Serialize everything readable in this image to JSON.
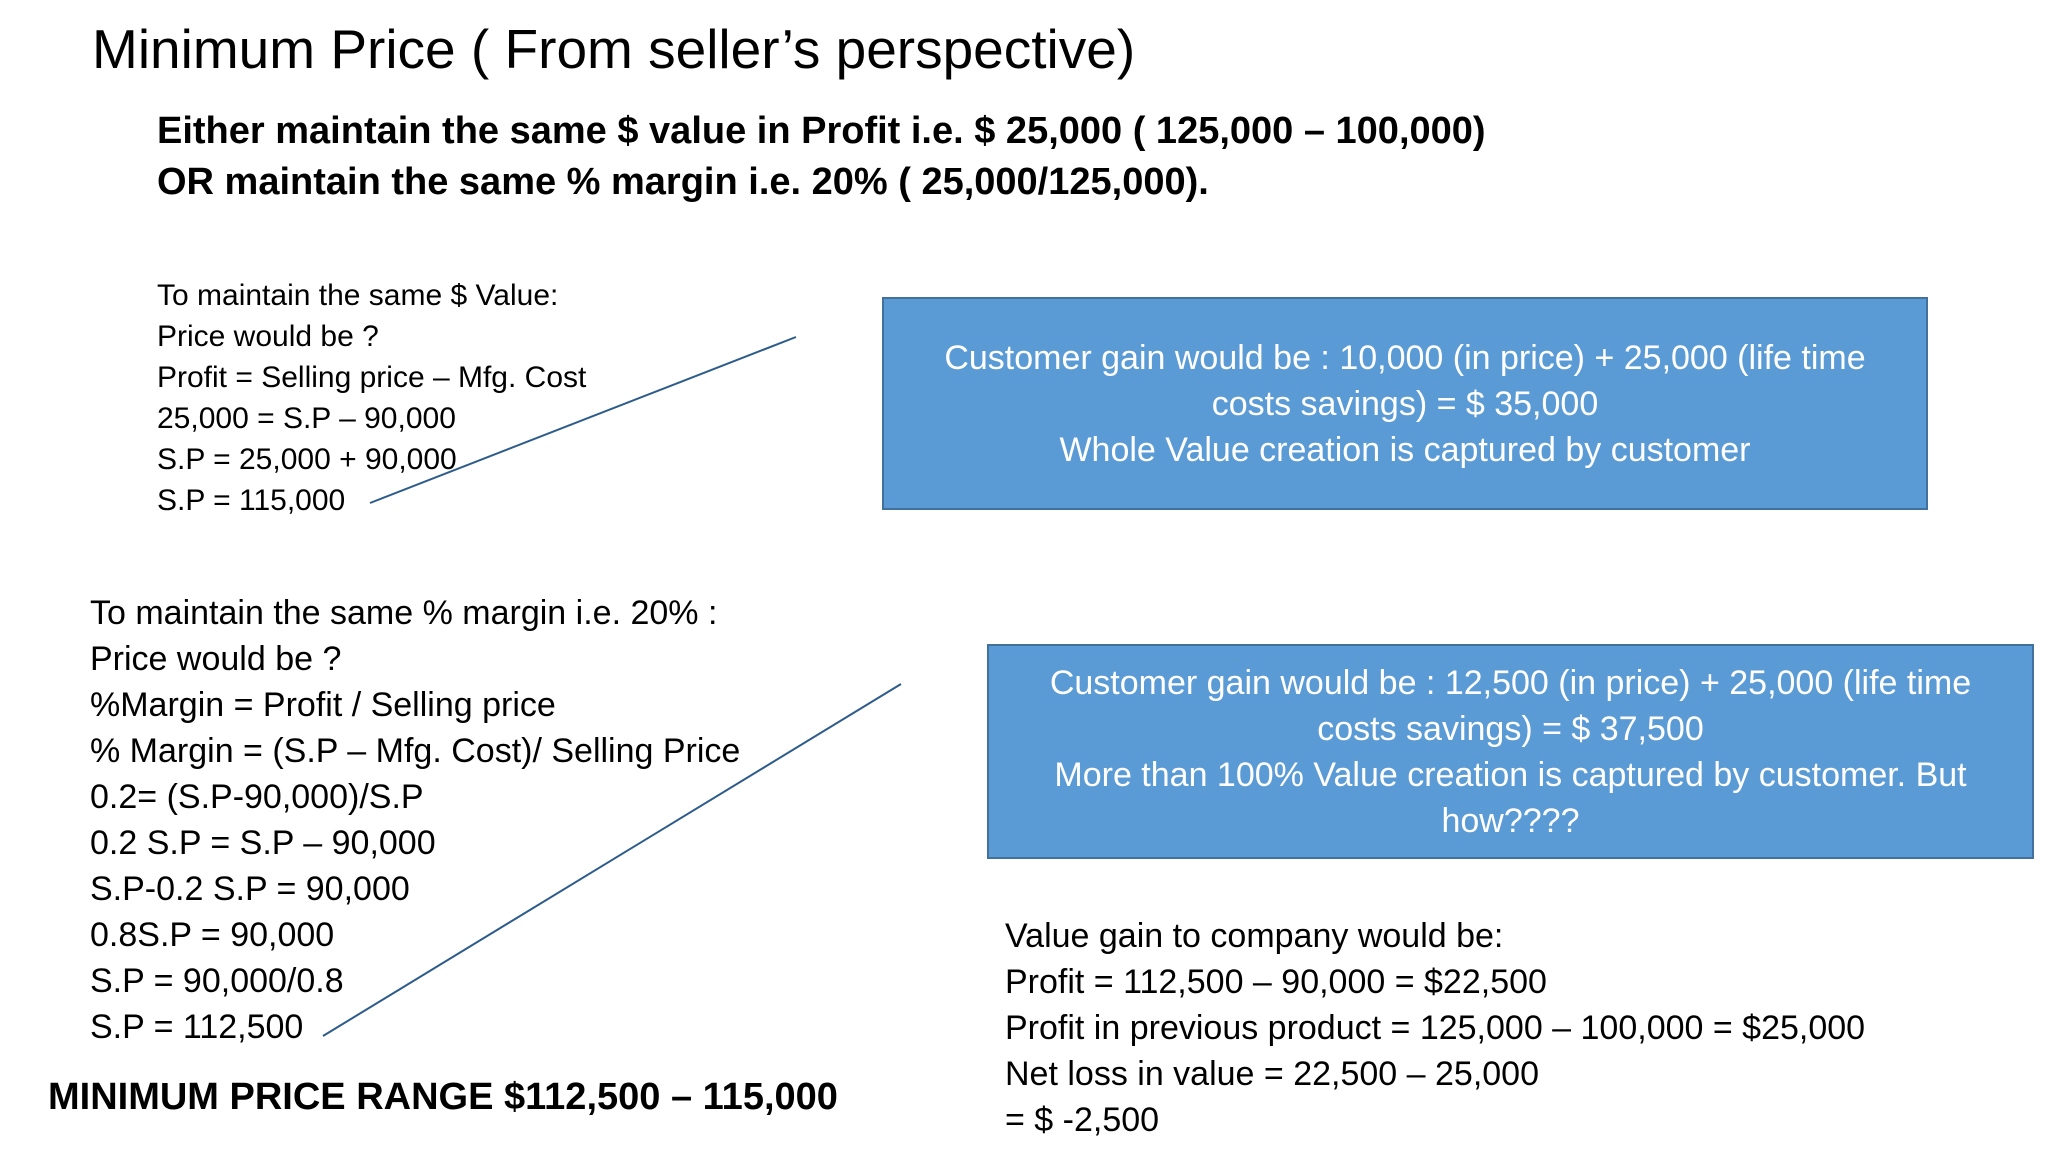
{
  "title": "Minimum Price ( From seller’s perspective)",
  "subtitle": {
    "line1": "Either maintain the same $ value in Profit i.e. $ 25,000 ( 125,000 – 100,000)",
    "line2": "OR maintain the same % margin i.e. 20% ( 25,000/125,000)."
  },
  "dollar_value_calc": {
    "lines": [
      "To maintain the same $ Value:",
      "Price would be ?",
      "Profit = Selling price – Mfg. Cost",
      "25,000 = S.P – 90,000",
      "S.P = 25,000 + 90,000",
      "S.P = 115,000"
    ]
  },
  "callout_dollar": {
    "line1": "Customer  gain would be : 10,000 (in price) + 25,000 (life time costs savings) = $ 35,000",
    "line2": "Whole Value creation is captured by customer"
  },
  "margin_calc": {
    "lines": [
      "To maintain the same % margin i.e. 20% :",
      "Price would be ?",
      "%Margin = Profit / Selling price",
      "% Margin = (S.P – Mfg. Cost)/ Selling Price",
      "0.2= (S.P-90,000)/S.P",
      "0.2 S.P = S.P – 90,000",
      "S.P-0.2 S.P = 90,000",
      "0.8S.P = 90,000",
      "S.P = 90,000/0.8",
      "S.P = 112,500"
    ]
  },
  "callout_margin": {
    "line1": "Customer  gain would be : 12,500 (in price) + 25,000 (life time costs savings) = $ 37,500",
    "line2": "More than 100%  Value creation is captured by customer. But how????"
  },
  "company_value": {
    "lines": [
      "Value gain to company would be:",
      "Profit = 112,500 – 90,000  = $22,500",
      "Profit in previous product = 125,000 – 100,000 = $25,000",
      "Net loss in value = 22,500 – 25,000",
      "= $ -2,500"
    ]
  },
  "price_range": "MINIMUM PRICE RANGE $112,500 – 115,000",
  "colors": {
    "callout_fill": "#5b9bd5",
    "callout_border": "#41719c",
    "connector_line": "#2e5c8a"
  }
}
